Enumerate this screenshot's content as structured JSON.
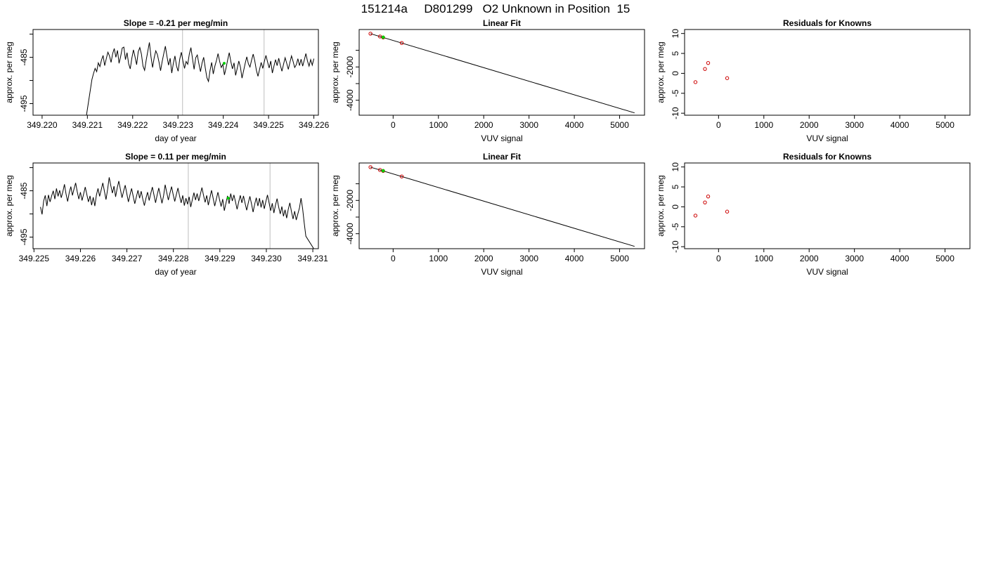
{
  "page": {
    "title": "151214a     D801299   O2 Unknown in Position  15"
  },
  "colors": {
    "line": "#000000",
    "marker_known": "#cc0000",
    "marker_unknown": "#00cc00",
    "vline": "#c8c8c8"
  },
  "chart_data": [
    {
      "id": "ts1",
      "type": "line",
      "title": "Slope =  -0.21  per meg/min",
      "xlabel": "day of year",
      "ylabel": "approx. per meg",
      "xlim": [
        349.2198,
        349.2261
      ],
      "ylim": [
        -497.5,
        -479
      ],
      "xticks": [
        "349.220",
        "349.221",
        "349.222",
        "349.223",
        "349.224",
        "349.225",
        "349.226"
      ],
      "xtick_values": [
        349.22,
        349.221,
        349.222,
        349.223,
        349.224,
        349.225,
        349.226
      ],
      "yticks": [
        "-485",
        "-495"
      ],
      "ytick_values": [
        -485,
        -495
      ],
      "yminor_values": [
        -480,
        -490
      ],
      "vlines": [
        349.2231,
        349.2249
      ],
      "series_start_x": 349.22098,
      "series_start_y": -497.5,
      "x_start": 349.2211,
      "x_end": 349.226,
      "values": [
        -489.8,
        -488.5,
        -487.4,
        -488.1,
        -486.2,
        -487.0,
        -485.6,
        -484.6,
        -486.8,
        -485.3,
        -483.9,
        -484.7,
        -486.1,
        -484.2,
        -483.1,
        -485.0,
        -483.5,
        -486.3,
        -484.8,
        -483.0,
        -482.8,
        -485.5,
        -484.0,
        -486.4,
        -487.5,
        -485.2,
        -483.4,
        -484.9,
        -486.6,
        -483.8,
        -482.9,
        -484.3,
        -486.9,
        -487.8,
        -485.6,
        -483.7,
        -481.8,
        -484.9,
        -487.2,
        -485.1,
        -483.6,
        -484.4,
        -486.0,
        -487.9,
        -485.9,
        -484.2,
        -482.6,
        -484.8,
        -486.7,
        -485.2,
        -488.4,
        -486.3,
        -484.7,
        -486.9,
        -488.0,
        -485.4,
        -483.9,
        -485.8,
        -487.4,
        -485.9,
        -486.5,
        -484.3,
        -482.9,
        -485.3,
        -487.6,
        -485.1,
        -484.5,
        -486.4,
        -488.1,
        -486.2,
        -485.0,
        -487.3,
        -489.4,
        -490.2,
        -487.8,
        -486.1,
        -488.6,
        -486.9,
        -485.7,
        -484.2,
        -485.9,
        -487.2,
        -486.5,
        -488.8,
        -487.3,
        -485.6,
        -484.0,
        -485.9,
        -487.5,
        -486.2,
        -488.9,
        -487.4,
        -485.8,
        -487.1,
        -489.5,
        -487.9,
        -486.3,
        -484.9,
        -486.4,
        -487.1,
        -485.6,
        -484.3,
        -485.8,
        -487.8,
        -489.1,
        -487.6,
        -486.1,
        -487.4,
        -485.9,
        -484.6,
        -486.0,
        -487.3,
        -485.8,
        -488.4,
        -486.9,
        -485.5,
        -486.8,
        -485.2,
        -486.7,
        -488.0,
        -486.5,
        -485.1,
        -486.3,
        -487.6,
        -486.1,
        -484.7,
        -485.9,
        -487.2,
        -486.6,
        -485.3,
        -486.8,
        -485.4,
        -486.9,
        -485.6,
        -484.2,
        -485.8,
        -486.9,
        -485.5,
        -486.7,
        -485.3
      ],
      "green_point": [
        349.22402,
        -486.3
      ]
    },
    {
      "id": "fit1",
      "type": "scatter",
      "title": "Linear Fit",
      "xlabel": "VUV signal",
      "ylabel": "approx. per meg",
      "xlim": [
        -750,
        5550
      ],
      "ylim": [
        -4900,
        250
      ],
      "xticks": [
        "0",
        "1000",
        "2000",
        "3000",
        "4000",
        "5000"
      ],
      "xtick_values": [
        0,
        1000,
        2000,
        3000,
        4000,
        5000
      ],
      "yticks": [
        "-2000",
        "-4000"
      ],
      "ytick_values": [
        -2000,
        -4000
      ],
      "yminor_values": [
        -1000,
        -3000
      ],
      "fit_line": [
        [
          -500,
          0
        ],
        [
          5330,
          -4760
        ]
      ],
      "known_points": [
        [
          -500,
          0
        ],
        [
          -290,
          -170
        ],
        [
          -220,
          -230
        ],
        [
          190,
          -560
        ]
      ],
      "unknown_points": [
        [
          -220,
          -215
        ]
      ]
    },
    {
      "id": "res1",
      "type": "scatter",
      "title": "Residuals for Knowns",
      "xlabel": "VUV signal",
      "ylabel": "approx. per meg",
      "xlim": [
        -750,
        5550
      ],
      "ylim": [
        -10.5,
        11
      ],
      "xticks": [
        "0",
        "1000",
        "2000",
        "3000",
        "4000",
        "5000"
      ],
      "xtick_values": [
        0,
        1000,
        2000,
        3000,
        4000,
        5000
      ],
      "yticks": [
        "-10",
        "-5",
        "0",
        "5",
        "10"
      ],
      "ytick_values": [
        -10,
        -5,
        0,
        5,
        10
      ],
      "points": [
        [
          -510,
          -2.2
        ],
        [
          -300,
          1.1
        ],
        [
          -230,
          2.6
        ],
        [
          190,
          -1.2
        ]
      ]
    },
    {
      "id": "ts2",
      "type": "line",
      "title": "Slope =  0.11  per meg/min",
      "xlabel": "day of year",
      "ylabel": "approx. per meg",
      "xlim": [
        349.22498,
        349.23112
      ],
      "ylim": [
        -497.5,
        -479
      ],
      "xticks": [
        "349.225",
        "349.226",
        "349.227",
        "349.228",
        "349.229",
        "349.230",
        "349.231"
      ],
      "xtick_values": [
        349.225,
        349.226,
        349.227,
        349.228,
        349.229,
        349.23,
        349.231
      ],
      "yticks": [
        "-485",
        "-495"
      ],
      "ytick_values": [
        -485,
        -495
      ],
      "yminor_values": [
        -480,
        -490
      ],
      "vlines": [
        349.22832,
        349.23008
      ],
      "x_start": 349.22514,
      "x_end": 349.23085,
      "series_end_x": 349.23102,
      "series_end_y": -497.5,
      "values": [
        -488.5,
        -490.1,
        -487.2,
        -486.0,
        -488.3,
        -485.9,
        -487.4,
        -486.1,
        -485.0,
        -486.8,
        -484.5,
        -486.2,
        -484.9,
        -486.5,
        -485.2,
        -483.6,
        -485.7,
        -487.3,
        -485.4,
        -484.1,
        -486.0,
        -484.6,
        -483.3,
        -485.2,
        -486.8,
        -485.3,
        -487.1,
        -485.7,
        -484.2,
        -485.8,
        -487.4,
        -486.1,
        -488.1,
        -486.4,
        -488.3,
        -485.9,
        -484.5,
        -486.2,
        -484.8,
        -483.3,
        -485.1,
        -486.9,
        -484.7,
        -482.1,
        -483.9,
        -485.5,
        -484.0,
        -486.3,
        -484.4,
        -482.9,
        -484.7,
        -486.5,
        -485.1,
        -483.8,
        -485.6,
        -487.4,
        -485.9,
        -484.5,
        -486.2,
        -487.8,
        -486.3,
        -484.9,
        -486.6,
        -485.1,
        -486.8,
        -488.2,
        -486.6,
        -485.3,
        -487.1,
        -485.6,
        -484.2,
        -485.9,
        -487.6,
        -485.9,
        -484.4,
        -486.0,
        -487.7,
        -486.1,
        -483.7,
        -485.4,
        -487.0,
        -485.5,
        -484.1,
        -485.8,
        -487.3,
        -485.8,
        -484.4,
        -486.1,
        -487.6,
        -486.0,
        -488.2,
        -486.6,
        -487.9,
        -486.3,
        -488.5,
        -486.9,
        -485.4,
        -487.0,
        -485.6,
        -487.2,
        -485.8,
        -484.3,
        -486.0,
        -487.5,
        -486.0,
        -488.1,
        -486.5,
        -484.9,
        -486.6,
        -488.3,
        -486.8,
        -485.3,
        -486.9,
        -488.4,
        -486.8,
        -489.3,
        -487.7,
        -486.1,
        -487.8,
        -485.6,
        -487.2,
        -485.9,
        -487.4,
        -489.0,
        -487.4,
        -486.0,
        -487.6,
        -486.1,
        -487.7,
        -489.2,
        -487.6,
        -486.2,
        -487.8,
        -489.6,
        -487.9,
        -486.5,
        -488.3,
        -486.6,
        -488.6,
        -487.0,
        -488.9,
        -487.3,
        -485.9,
        -487.6,
        -489.3,
        -487.7,
        -489.8,
        -488.1,
        -486.7,
        -488.5,
        -490.0,
        -488.4,
        -490.5,
        -489.1,
        -490.9,
        -489.0,
        -487.6,
        -489.5,
        -491.1,
        -489.4,
        -491.3,
        -490.0,
        -488.7,
        -486.6,
        -488.9,
        -492.0,
        -494.8
      ],
      "green_point": [
        349.22918,
        -486.6
      ]
    },
    {
      "id": "fit2",
      "type": "scatter",
      "title": "Linear Fit",
      "xlabel": "VUV signal",
      "ylabel": "approx. per meg",
      "xlim": [
        -750,
        5550
      ],
      "ylim": [
        -4900,
        250
      ],
      "xticks": [
        "0",
        "1000",
        "2000",
        "3000",
        "4000",
        "5000"
      ],
      "xtick_values": [
        0,
        1000,
        2000,
        3000,
        4000,
        5000
      ],
      "yticks": [
        "-2000",
        "-4000"
      ],
      "ytick_values": [
        -2000,
        -4000
      ],
      "yminor_values": [
        -1000,
        -3000
      ],
      "fit_line": [
        [
          -500,
          0
        ],
        [
          5330,
          -4760
        ]
      ],
      "known_points": [
        [
          -500,
          0
        ],
        [
          -290,
          -170
        ],
        [
          -220,
          -230
        ],
        [
          190,
          -560
        ]
      ],
      "unknown_points": [
        [
          -220,
          -215
        ]
      ]
    },
    {
      "id": "res2",
      "type": "scatter",
      "title": "Residuals for Knowns",
      "xlabel": "VUV signal",
      "ylabel": "approx. per meg",
      "xlim": [
        -750,
        5550
      ],
      "ylim": [
        -10.5,
        11
      ],
      "xticks": [
        "0",
        "1000",
        "2000",
        "3000",
        "4000",
        "5000"
      ],
      "xtick_values": [
        0,
        1000,
        2000,
        3000,
        4000,
        5000
      ],
      "yticks": [
        "-10",
        "-5",
        "0",
        "5",
        "10"
      ],
      "ytick_values": [
        -10,
        -5,
        0,
        5,
        10
      ],
      "points": [
        [
          -510,
          -2.2
        ],
        [
          -300,
          1.1
        ],
        [
          -230,
          2.6
        ],
        [
          190,
          -1.2
        ]
      ]
    }
  ]
}
